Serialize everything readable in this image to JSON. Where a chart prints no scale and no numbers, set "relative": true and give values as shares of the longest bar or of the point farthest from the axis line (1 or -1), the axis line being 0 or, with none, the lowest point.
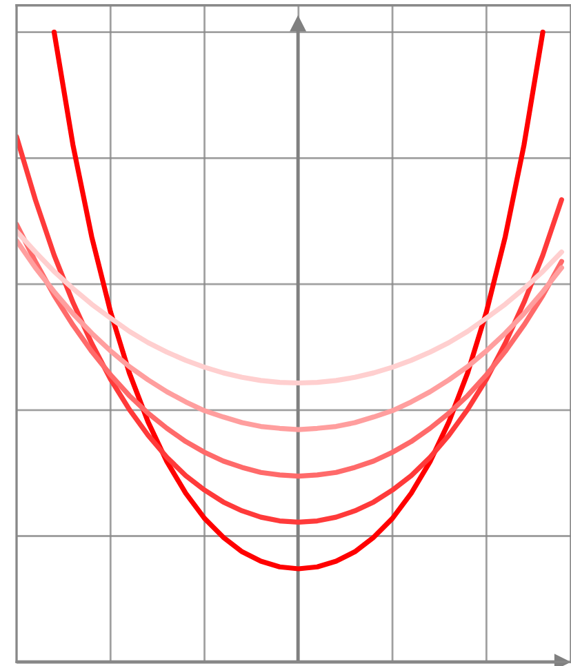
{
  "chart_data": {
    "type": "line",
    "relative": true,
    "grid": true,
    "categories": [
      null,
      null,
      null,
      null,
      null,
      null,
      null,
      null,
      null,
      null,
      null,
      null,
      null,
      null,
      null,
      null,
      null,
      null,
      null,
      null,
      null,
      null,
      null,
      null,
      null,
      null,
      null,
      null,
      null,
      null
    ],
    "series": [
      {
        "color": "#ff0000",
        "values": [
          null,
          null,
          1.0,
          0.821,
          0.675,
          0.556,
          0.459,
          0.381,
          0.318,
          0.268,
          0.228,
          0.198,
          0.175,
          0.16,
          0.151,
          0.148,
          0.151,
          0.16,
          0.175,
          0.198,
          0.228,
          0.268,
          0.318,
          0.381,
          0.459,
          0.556,
          0.675,
          0.821,
          1.0,
          null
        ]
      },
      {
        "color": "#ff3a3a",
        "values": [
          0.834,
          0.734,
          0.646,
          0.571,
          0.506,
          0.449,
          0.401,
          0.36,
          0.325,
          0.296,
          0.273,
          0.254,
          0.24,
          0.23,
          0.224,
          0.222,
          0.224,
          0.23,
          0.24,
          0.254,
          0.273,
          0.296,
          0.325,
          0.36,
          0.401,
          0.449,
          0.506,
          0.571,
          0.646,
          0.734
        ]
      },
      {
        "color": "#ff6a6a",
        "values": [
          0.695,
          0.636,
          0.582,
          0.535,
          0.493,
          0.456,
          0.423,
          0.395,
          0.371,
          0.35,
          0.333,
          0.319,
          0.309,
          0.301,
          0.297,
          0.295,
          0.297,
          0.301,
          0.309,
          0.319,
          0.333,
          0.35,
          0.371,
          0.395,
          0.423,
          0.456,
          0.493,
          0.535,
          0.582,
          0.636
        ]
      },
      {
        "color": "#ff9e9e",
        "values": [
          0.669,
          0.626,
          0.588,
          0.553,
          0.522,
          0.494,
          0.469,
          0.448,
          0.429,
          0.413,
          0.399,
          0.389,
          0.38,
          0.374,
          0.371,
          0.369,
          0.371,
          0.374,
          0.38,
          0.389,
          0.399,
          0.413,
          0.429,
          0.448,
          0.469,
          0.494,
          0.522,
          0.553,
          0.588,
          0.626
        ]
      },
      {
        "color": "#ffcfcf",
        "values": [
          0.684,
          0.651,
          0.62,
          0.593,
          0.568,
          0.546,
          0.525,
          0.507,
          0.492,
          0.479,
          0.468,
          0.459,
          0.452,
          0.447,
          0.444,
          0.443,
          0.444,
          0.447,
          0.452,
          0.459,
          0.468,
          0.479,
          0.492,
          0.507,
          0.525,
          0.546,
          0.568,
          0.593,
          0.62,
          0.651
        ]
      }
    ]
  }
}
